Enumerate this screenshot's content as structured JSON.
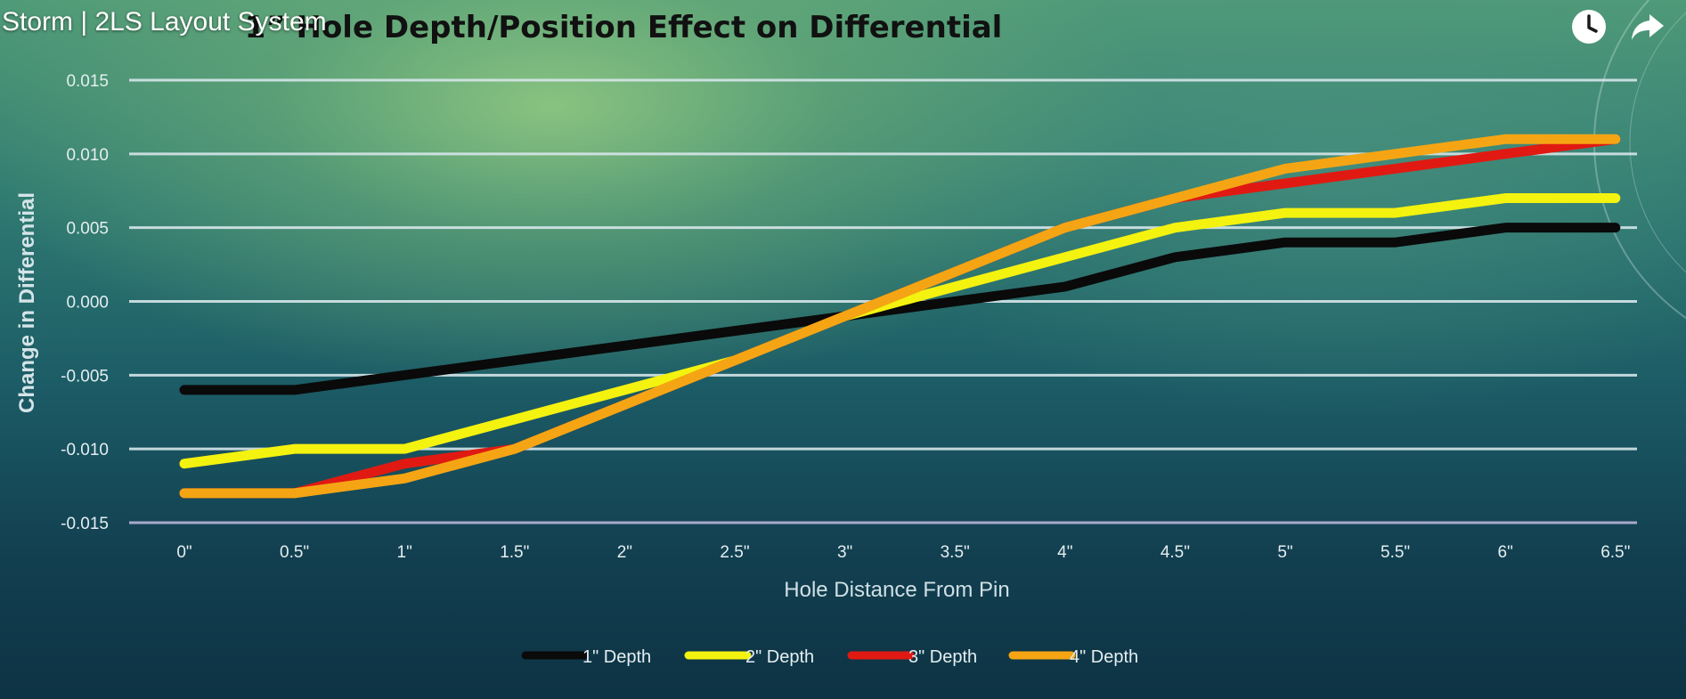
{
  "video": {
    "title": "Storm | 2LS Layout System"
  },
  "controls": {
    "watch_later_icon": "clock-icon",
    "share_icon": "share-arrow-icon"
  },
  "chart_data": {
    "type": "line",
    "title": "1” Hole Depth/Position Effect on Differential",
    "xlabel": "Hole Distance From Pin",
    "ylabel": "Change in Differential",
    "categories": [
      "0\"",
      "0.5\"",
      "1\"",
      "1.5\"",
      "2\"",
      "2.5\"",
      "3\"",
      "3.5\"",
      "4\"",
      "4.5\"",
      "5\"",
      "5.5\"",
      "6\"",
      "6.5\""
    ],
    "ylim": [
      -0.015,
      0.015
    ],
    "yticks": [
      "0.015",
      "0.010",
      "0.005",
      "0.000",
      "-0.005",
      "-0.010",
      "-0.015"
    ],
    "grid": true,
    "legend_position": "bottom",
    "series": [
      {
        "name": "1\" Depth",
        "color": "#0a0a0a",
        "values": [
          -0.006,
          -0.006,
          -0.005,
          -0.004,
          -0.003,
          -0.002,
          -0.001,
          0.0,
          0.001,
          0.003,
          0.004,
          0.004,
          0.005,
          0.005
        ]
      },
      {
        "name": "2\" Depth",
        "color": "#f4f20f",
        "values": [
          -0.011,
          -0.01,
          -0.01,
          -0.008,
          -0.006,
          -0.004,
          -0.001,
          0.001,
          0.003,
          0.005,
          0.006,
          0.006,
          0.007,
          0.007
        ]
      },
      {
        "name": "3\" Depth",
        "color": "#e01a12",
        "values": [
          -0.013,
          -0.013,
          -0.011,
          -0.01,
          -0.007,
          -0.004,
          -0.001,
          0.002,
          0.005,
          0.007,
          0.008,
          0.009,
          0.01,
          0.011
        ]
      },
      {
        "name": "4\" Depth",
        "color": "#f5a514",
        "values": [
          -0.013,
          -0.013,
          -0.012,
          -0.01,
          -0.007,
          -0.004,
          -0.001,
          0.002,
          0.005,
          0.007,
          0.009,
          0.01,
          0.011,
          0.011
        ]
      }
    ]
  }
}
